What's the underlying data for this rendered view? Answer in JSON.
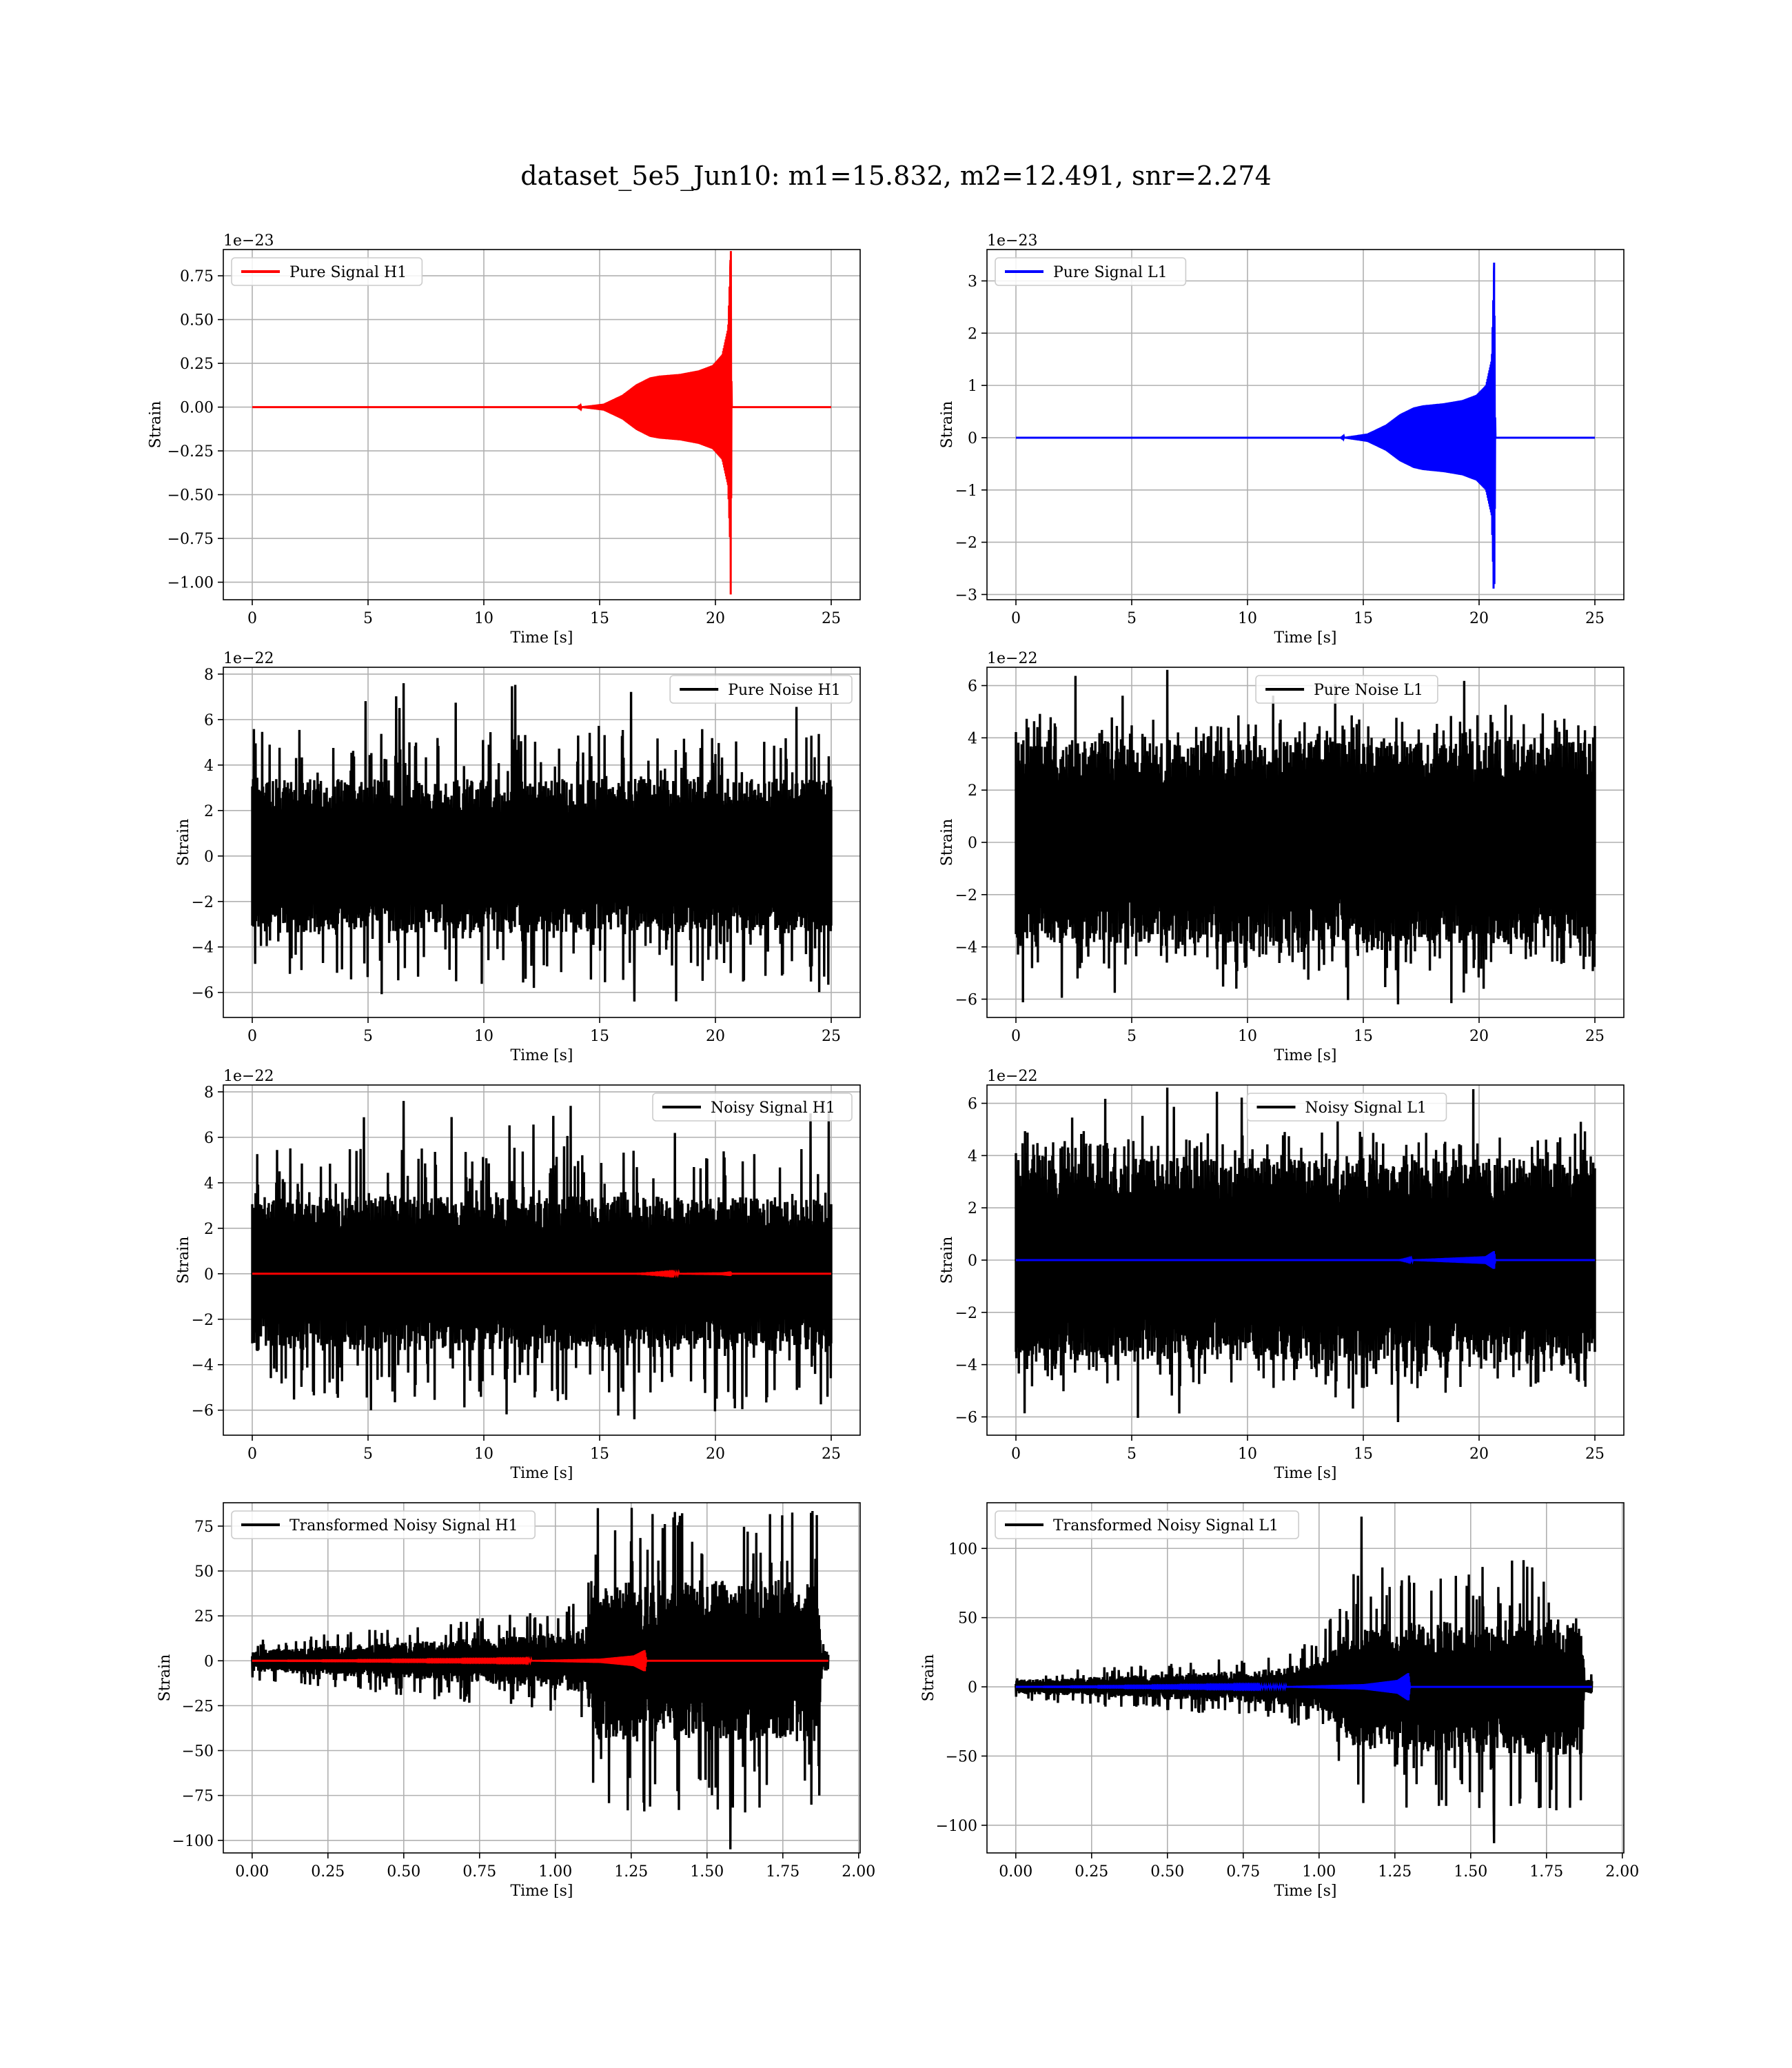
{
  "figure": {
    "title": "dataset_5e5_Jun10: m1=15.832, m2=12.491, snr=2.274"
  },
  "chart_data": [
    {
      "type": "line",
      "id": "pure-signal-h1",
      "xlabel": "Time [s]",
      "ylabel": "Strain",
      "offset_label": "1e−23",
      "xlim": [
        -1.25,
        26.25
      ],
      "ylim": [
        -1.1,
        0.9
      ],
      "xticks": [
        0,
        5,
        10,
        15,
        20,
        25
      ],
      "xtick_labels": [
        "0",
        "5",
        "10",
        "15",
        "20",
        "25"
      ],
      "yticks": [
        -1.0,
        -0.75,
        -0.5,
        -0.25,
        0.0,
        0.25,
        0.5,
        0.75
      ],
      "ytick_labels": [
        "−1.00",
        "−0.75",
        "−0.50",
        "−0.25",
        "0.00",
        "0.25",
        "0.50",
        "0.75"
      ],
      "grid": true,
      "legend_position": "upper-left",
      "series": [
        {
          "name": "Pure Signal H1",
          "color": "#ff0000",
          "kind": "chirp-envelope",
          "x_start": 0,
          "x_end": 25,
          "envelope": [
            [
              0,
              0
            ],
            [
              14.0,
              0.0
            ],
            [
              15.2,
              0.02
            ],
            [
              16.0,
              0.07
            ],
            [
              16.6,
              0.13
            ],
            [
              17.2,
              0.17
            ],
            [
              17.6,
              0.18
            ],
            [
              18.5,
              0.19
            ],
            [
              19.3,
              0.21
            ],
            [
              19.9,
              0.24
            ],
            [
              20.3,
              0.3
            ],
            [
              20.55,
              0.45
            ],
            [
              20.65,
              0.84
            ],
            [
              20.66,
              -1.07
            ],
            [
              20.7,
              0.0
            ],
            [
              25,
              0.0
            ]
          ]
        }
      ]
    },
    {
      "type": "line",
      "id": "pure-signal-l1",
      "xlabel": "Time [s]",
      "ylabel": "Strain",
      "offset_label": "1e−23",
      "xlim": [
        -1.25,
        26.25
      ],
      "ylim": [
        -3.1,
        3.6
      ],
      "xticks": [
        0,
        5,
        10,
        15,
        20,
        25
      ],
      "xtick_labels": [
        "0",
        "5",
        "10",
        "15",
        "20",
        "25"
      ],
      "yticks": [
        -3,
        -2,
        -1,
        0,
        1,
        2,
        3
      ],
      "ytick_labels": [
        "−3",
        "−2",
        "−1",
        "0",
        "1",
        "2",
        "3"
      ],
      "grid": true,
      "legend_position": "upper-left",
      "series": [
        {
          "name": "Pure Signal L1",
          "color": "#0000ff",
          "kind": "chirp-envelope",
          "x_start": 0,
          "x_end": 25,
          "envelope": [
            [
              0,
              0
            ],
            [
              14.0,
              0.0
            ],
            [
              15.2,
              0.08
            ],
            [
              16.0,
              0.25
            ],
            [
              16.6,
              0.45
            ],
            [
              17.2,
              0.58
            ],
            [
              17.6,
              0.62
            ],
            [
              18.5,
              0.66
            ],
            [
              19.3,
              0.72
            ],
            [
              19.9,
              0.82
            ],
            [
              20.3,
              1.0
            ],
            [
              20.55,
              1.5
            ],
            [
              20.65,
              3.35
            ],
            [
              20.66,
              -2.8
            ],
            [
              20.7,
              0.0
            ],
            [
              25,
              0.0
            ]
          ]
        }
      ]
    },
    {
      "type": "line",
      "id": "pure-noise-h1",
      "xlabel": "Time [s]",
      "ylabel": "Strain",
      "offset_label": "1e−22",
      "xlim": [
        -1.25,
        26.25
      ],
      "ylim": [
        -7.1,
        8.3
      ],
      "xticks": [
        0,
        5,
        10,
        15,
        20,
        25
      ],
      "xtick_labels": [
        "0",
        "5",
        "10",
        "15",
        "20",
        "25"
      ],
      "yticks": [
        -6,
        -4,
        -2,
        0,
        2,
        4,
        6,
        8
      ],
      "ytick_labels": [
        "−6",
        "−4",
        "−2",
        "0",
        "2",
        "4",
        "6",
        "8"
      ],
      "grid": true,
      "legend_position": "upper-right",
      "series": [
        {
          "name": "Pure Noise H1",
          "color": "#000000",
          "kind": "noise",
          "x_start": 0,
          "x_end": 25,
          "band": 3.4,
          "peak": 5.3,
          "max": 7.6,
          "min": -6.4
        }
      ]
    },
    {
      "type": "line",
      "id": "pure-noise-l1",
      "xlabel": "Time [s]",
      "ylabel": "Strain",
      "offset_label": "1e−22",
      "xlim": [
        -1.25,
        26.25
      ],
      "ylim": [
        -6.7,
        6.7
      ],
      "xticks": [
        0,
        5,
        10,
        15,
        20,
        25
      ],
      "xtick_labels": [
        "0",
        "5",
        "10",
        "15",
        "20",
        "25"
      ],
      "yticks": [
        -6,
        -4,
        -2,
        0,
        2,
        4,
        6
      ],
      "ytick_labels": [
        "−6",
        "−4",
        "−2",
        "0",
        "2",
        "4",
        "6"
      ],
      "grid": true,
      "legend_position": "upper-center",
      "series": [
        {
          "name": "Pure Noise L1",
          "color": "#000000",
          "kind": "noise",
          "x_start": 0,
          "x_end": 25,
          "band": 3.9,
          "peak": 4.8,
          "max": 6.6,
          "min": -6.2
        }
      ]
    },
    {
      "type": "line",
      "id": "noisy-signal-h1",
      "xlabel": "Time [s]",
      "ylabel": "Strain",
      "offset_label": "1e−22",
      "xlim": [
        -1.25,
        26.25
      ],
      "ylim": [
        -7.1,
        8.3
      ],
      "xticks": [
        0,
        5,
        10,
        15,
        20,
        25
      ],
      "xtick_labels": [
        "0",
        "5",
        "10",
        "15",
        "20",
        "25"
      ],
      "yticks": [
        -6,
        -4,
        -2,
        0,
        2,
        4,
        6,
        8
      ],
      "ytick_labels": [
        "−6",
        "−4",
        "−2",
        "0",
        "2",
        "4",
        "6",
        "8"
      ],
      "grid": true,
      "legend_position": "upper-right",
      "series": [
        {
          "name": "Noisy Signal H1",
          "color": "#000000",
          "kind": "noise",
          "x_start": 0,
          "x_end": 25,
          "band": 3.4,
          "peak": 5.3,
          "max": 7.6,
          "min": -6.4
        },
        {
          "color": "#ff0000",
          "kind": "chirp-envelope",
          "x_start": 0,
          "x_end": 25,
          "envelope": [
            [
              0,
              0
            ],
            [
              16.5,
              0.0
            ],
            [
              18.5,
              0.03
            ],
            [
              20.3,
              0.06
            ],
            [
              20.65,
              0.1
            ],
            [
              20.7,
              0.0
            ],
            [
              25,
              0.0
            ]
          ]
        }
      ]
    },
    {
      "type": "line",
      "id": "noisy-signal-l1",
      "xlabel": "Time [s]",
      "ylabel": "Strain",
      "offset_label": "1e−22",
      "xlim": [
        -1.25,
        26.25
      ],
      "ylim": [
        -6.7,
        6.7
      ],
      "xticks": [
        0,
        5,
        10,
        15,
        20,
        25
      ],
      "xtick_labels": [
        "0",
        "5",
        "10",
        "15",
        "20",
        "25"
      ],
      "yticks": [
        -6,
        -4,
        -2,
        0,
        2,
        4,
        6
      ],
      "ytick_labels": [
        "−6",
        "−4",
        "−2",
        "0",
        "2",
        "4",
        "6"
      ],
      "grid": true,
      "legend_position": "upper-center",
      "series": [
        {
          "name": "Noisy Signal L1",
          "color": "#000000",
          "kind": "noise",
          "x_start": 0,
          "x_end": 25,
          "band": 3.9,
          "peak": 4.8,
          "max": 6.6,
          "min": -6.2
        },
        {
          "color": "#0000ff",
          "kind": "chirp-envelope",
          "x_start": 0,
          "x_end": 25,
          "envelope": [
            [
              0,
              0
            ],
            [
              16.5,
              0.0
            ],
            [
              18.5,
              0.08
            ],
            [
              20.3,
              0.15
            ],
            [
              20.65,
              0.35
            ],
            [
              20.7,
              0.0
            ],
            [
              25,
              0.0
            ]
          ]
        }
      ]
    },
    {
      "type": "line",
      "id": "transformed-noisy-signal-h1",
      "xlabel": "Time [s]",
      "ylabel": "Strain",
      "offset_label": "",
      "xlim": [
        -0.095,
        2.005
      ],
      "ylim": [
        -107,
        88
      ],
      "xticks": [
        0.0,
        0.25,
        0.5,
        0.75,
        1.0,
        1.25,
        1.5,
        1.75,
        2.0
      ],
      "xtick_labels": [
        "0.00",
        "0.25",
        "0.50",
        "0.75",
        "1.00",
        "1.25",
        "1.50",
        "1.75",
        "2.00"
      ],
      "yticks": [
        -100,
        -75,
        -50,
        -25,
        0,
        25,
        50,
        75
      ],
      "ytick_labels": [
        "−100",
        "−75",
        "−50",
        "−25",
        "0",
        "25",
        "50",
        "75"
      ],
      "grid": true,
      "legend_position": "upper-left",
      "series": [
        {
          "name": "Transformed Noisy Signal H1",
          "color": "#000000",
          "kind": "whitened",
          "x_start": 0,
          "x_end": 1.9,
          "stages": [
            [
              0,
              6
            ],
            [
              0.45,
              10
            ],
            [
              0.9,
              14
            ],
            [
              1.1,
              18
            ],
            [
              1.13,
              45
            ],
            [
              1.87,
              45
            ],
            [
              1.875,
              6
            ],
            [
              1.9,
              6
            ]
          ],
          "max": 85,
          "min": -105
        },
        {
          "color": "#ff0000",
          "kind": "chirp-envelope",
          "x_start": 0,
          "x_end": 1.9,
          "envelope": [
            [
              0,
              0
            ],
            [
              0.9,
              0.3
            ],
            [
              1.15,
              1.2
            ],
            [
              1.26,
              3.0
            ],
            [
              1.295,
              6.0
            ],
            [
              1.3,
              0.0
            ],
            [
              1.9,
              0.0
            ]
          ]
        }
      ]
    },
    {
      "type": "line",
      "id": "transformed-noisy-signal-l1",
      "xlabel": "Time [s]",
      "ylabel": "Strain",
      "offset_label": "",
      "xlim": [
        -0.095,
        2.005
      ],
      "ylim": [
        -120,
        133
      ],
      "xticks": [
        0.0,
        0.25,
        0.5,
        0.75,
        1.0,
        1.25,
        1.5,
        1.75,
        2.0
      ],
      "xtick_labels": [
        "0.00",
        "0.25",
        "0.50",
        "0.75",
        "1.00",
        "1.25",
        "1.50",
        "1.75",
        "2.00"
      ],
      "yticks": [
        -100,
        -50,
        0,
        50,
        100
      ],
      "ytick_labels": [
        "−100",
        "−50",
        "0",
        "50",
        "100"
      ],
      "grid": true,
      "legend_position": "upper-left",
      "series": [
        {
          "name": "Transformed Noisy Signal L1",
          "color": "#000000",
          "kind": "whitened",
          "x_start": 0,
          "x_end": 1.9,
          "stages": [
            [
              0,
              5
            ],
            [
              0.35,
              8
            ],
            [
              0.8,
              12
            ],
            [
              1.0,
              18
            ],
            [
              1.12,
              45
            ],
            [
              1.87,
              50
            ],
            [
              1.875,
              5
            ],
            [
              1.9,
              5
            ]
          ],
          "max": 123,
          "min": -113
        },
        {
          "color": "#0000ff",
          "kind": "chirp-envelope",
          "x_start": 0,
          "x_end": 1.9,
          "envelope": [
            [
              0,
              0
            ],
            [
              0.9,
              0.5
            ],
            [
              1.15,
              2.0
            ],
            [
              1.26,
              5.0
            ],
            [
              1.295,
              10.0
            ],
            [
              1.3,
              0.0
            ],
            [
              1.9,
              0.0
            ]
          ]
        }
      ]
    }
  ]
}
